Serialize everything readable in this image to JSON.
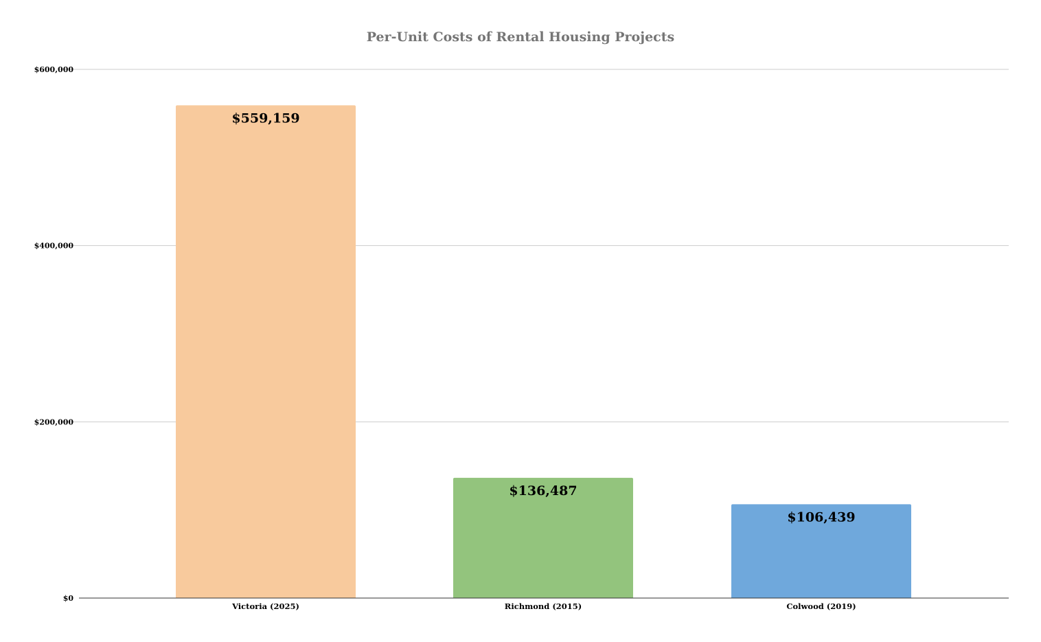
{
  "chart_data": {
    "type": "bar",
    "title": "Per-Unit Costs of Rental Housing Projects",
    "xlabel": "",
    "ylabel": "",
    "categories": [
      "Victoria (2025)",
      "Richmond (2015)",
      "Colwood (2019)"
    ],
    "values": [
      559159,
      136487,
      106439
    ],
    "data_labels": [
      "$559,159",
      "$136,487",
      "$106,439"
    ],
    "bar_colors": [
      "#F8CA9D",
      "#93C47D",
      "#6FA8DC"
    ],
    "ylim": [
      0,
      600000
    ],
    "y_ticks": [
      0,
      200000,
      400000,
      600000
    ],
    "y_tick_labels": [
      "$0",
      "$200,000",
      "$400,000",
      "$600,000"
    ],
    "grid": true,
    "legend": "none",
    "colors": {
      "title": "#757575",
      "gridline": "#CCCCCC",
      "axis_line": "#333333",
      "label_text": "#000000"
    }
  }
}
